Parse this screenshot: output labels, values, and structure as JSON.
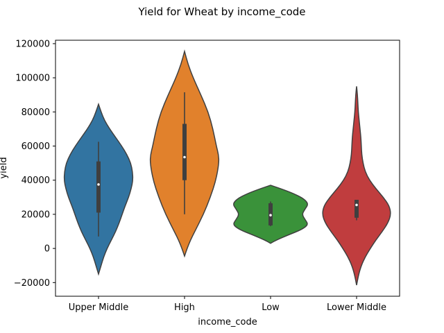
{
  "chart_data": {
    "type": "violin",
    "title": "Yield for Wheat by income_code",
    "xlabel": "income_code",
    "ylabel": "yield",
    "ylim": [
      -28000,
      122000
    ],
    "yticks": [
      -20000,
      0,
      20000,
      40000,
      60000,
      80000,
      100000,
      120000
    ],
    "yticklabels": [
      "−20000",
      "0",
      "20000",
      "40000",
      "60000",
      "80000",
      "100000",
      "120000"
    ],
    "grid": false,
    "categories": [
      "Upper Middle",
      "High",
      "Low",
      "Lower Middle"
    ],
    "series": [
      {
        "color": "#3274a1",
        "median": 37500,
        "q1": 21000,
        "q3": 51000,
        "whisker_low": 7000,
        "whisker_high": 62500,
        "profile": [
          [
            -15000,
            0.0
          ],
          [
            -10000,
            0.06
          ],
          [
            -5000,
            0.12
          ],
          [
            0,
            0.2
          ],
          [
            5000,
            0.3
          ],
          [
            10000,
            0.4
          ],
          [
            15000,
            0.48
          ],
          [
            20000,
            0.55
          ],
          [
            25000,
            0.62
          ],
          [
            30000,
            0.7
          ],
          [
            35000,
            0.76
          ],
          [
            40000,
            0.8
          ],
          [
            45000,
            0.79
          ],
          [
            50000,
            0.75
          ],
          [
            55000,
            0.66
          ],
          [
            60000,
            0.54
          ],
          [
            65000,
            0.4
          ],
          [
            70000,
            0.26
          ],
          [
            75000,
            0.14
          ],
          [
            80000,
            0.06
          ],
          [
            84500,
            0.0
          ]
        ]
      },
      {
        "color": "#e1812c",
        "median": 53500,
        "q1": 40000,
        "q3": 73000,
        "whisker_low": 20000,
        "whisker_high": 91500,
        "profile": [
          [
            -4500,
            0.0
          ],
          [
            0,
            0.06
          ],
          [
            5000,
            0.14
          ],
          [
            10000,
            0.24
          ],
          [
            20000,
            0.44
          ],
          [
            30000,
            0.6
          ],
          [
            40000,
            0.73
          ],
          [
            50000,
            0.8
          ],
          [
            55000,
            0.79
          ],
          [
            60000,
            0.74
          ],
          [
            70000,
            0.66
          ],
          [
            80000,
            0.55
          ],
          [
            90000,
            0.38
          ],
          [
            100000,
            0.2
          ],
          [
            108000,
            0.08
          ],
          [
            115500,
            0.0
          ]
        ]
      },
      {
        "color": "#3a923a",
        "median": 19500,
        "q1": 13500,
        "q3": 26500,
        "whisker_low": 13000,
        "whisker_high": 27500,
        "profile": [
          [
            3000,
            0.0
          ],
          [
            5000,
            0.14
          ],
          [
            8000,
            0.42
          ],
          [
            11000,
            0.72
          ],
          [
            14000,
            0.88
          ],
          [
            17000,
            0.8
          ],
          [
            20000,
            0.73
          ],
          [
            23000,
            0.8
          ],
          [
            26000,
            0.88
          ],
          [
            29000,
            0.78
          ],
          [
            32000,
            0.55
          ],
          [
            35000,
            0.24
          ],
          [
            37000,
            0.0
          ]
        ]
      },
      {
        "color": "#c03d3e",
        "median": 25500,
        "q1": 18000,
        "q3": 28500,
        "whisker_low": 16500,
        "whisker_high": 28500,
        "profile": [
          [
            -21500,
            0.0
          ],
          [
            -15000,
            0.05
          ],
          [
            -10000,
            0.11
          ],
          [
            -5000,
            0.2
          ],
          [
            0,
            0.32
          ],
          [
            5000,
            0.45
          ],
          [
            10000,
            0.6
          ],
          [
            15000,
            0.73
          ],
          [
            20000,
            0.8
          ],
          [
            25000,
            0.76
          ],
          [
            30000,
            0.62
          ],
          [
            35000,
            0.45
          ],
          [
            40000,
            0.3
          ],
          [
            45000,
            0.2
          ],
          [
            50000,
            0.15
          ],
          [
            55000,
            0.12
          ],
          [
            60000,
            0.11
          ],
          [
            65000,
            0.1
          ],
          [
            70000,
            0.08
          ],
          [
            75000,
            0.06
          ],
          [
            80000,
            0.04
          ],
          [
            85000,
            0.03
          ],
          [
            90000,
            0.02
          ],
          [
            95000,
            0.0
          ]
        ]
      }
    ]
  }
}
